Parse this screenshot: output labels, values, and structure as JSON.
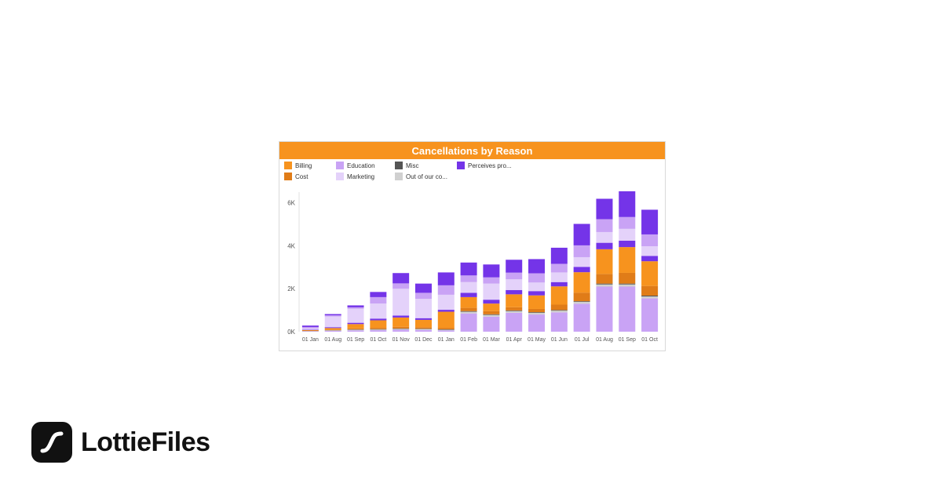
{
  "colors": {
    "header": "#F7931E",
    "Billing": "#F7931E",
    "Cost": "#E07C18",
    "Education": "#C9A3F5",
    "Marketing": "#E4D2FA",
    "Misc": "#555555",
    "Out of our co...": "#D0D0D0",
    "Perceives pro...": "#7434E8"
  },
  "brand": {
    "name": "LottieFiles",
    "logo_icon": "lottie-s-curve-icon"
  },
  "chart_data": {
    "type": "bar",
    "stacked": true,
    "title": "Cancellations by Reason",
    "legend_position": "top-left",
    "legend_order": [
      "Billing",
      "Education",
      "Misc",
      "Perceives pro...",
      "Cost",
      "Marketing",
      "Out of our co..."
    ],
    "categories": [
      "01 Jan",
      "01 Aug",
      "01 Sep",
      "01 Oct",
      "01 Nov",
      "01 Dec",
      "01 Jan",
      "01 Feb",
      "01 Mar",
      "01 Apr",
      "01 May",
      "01 Jun",
      "01 Jul",
      "01 Aug",
      "01 Sep",
      "01 Oct"
    ],
    "ylim": [
      0,
      6500
    ],
    "yticks": [
      0,
      2000,
      4000,
      6000
    ],
    "ytick_labels": [
      "0K",
      "2K",
      "4K",
      "6K"
    ],
    "grid": false,
    "series": [
      {
        "name": "Education",
        "values": [
          20,
          40,
          60,
          70,
          90,
          80,
          60,
          850,
          700,
          880,
          800,
          900,
          1300,
          2100,
          2100,
          1550
        ]
      },
      {
        "name": "Out of our co...",
        "values": [
          10,
          20,
          30,
          30,
          40,
          40,
          30,
          80,
          80,
          80,
          80,
          80,
          90,
          100,
          100,
          90
        ]
      },
      {
        "name": "Misc",
        "values": [
          5,
          10,
          15,
          20,
          20,
          20,
          20,
          30,
          30,
          30,
          30,
          30,
          30,
          40,
          40,
          40
        ]
      },
      {
        "name": "Cost",
        "values": [
          20,
          30,
          50,
          60,
          80,
          70,
          70,
          150,
          150,
          150,
          150,
          250,
          400,
          450,
          500,
          450
        ]
      },
      {
        "name": "Billing",
        "values": [
          20,
          70,
          200,
          350,
          430,
          340,
          750,
          500,
          350,
          600,
          630,
          850,
          950,
          1150,
          1200,
          1150
        ]
      },
      {
        "name": "Perceives pro...",
        "values": [
          20,
          40,
          60,
          80,
          90,
          80,
          90,
          200,
          180,
          200,
          200,
          200,
          250,
          300,
          300,
          250
        ]
      },
      {
        "name": "Marketing",
        "values": [
          60,
          500,
          650,
          700,
          1250,
          900,
          700,
          500,
          750,
          500,
          400,
          450,
          450,
          500,
          550,
          450
        ]
      },
      {
        "name": "Education",
        "values": [
          60,
          50,
          70,
          300,
          250,
          280,
          440,
          310,
          290,
          310,
          430,
          400,
          550,
          600,
          550,
          550
        ]
      },
      {
        "name": "Perceives pro...",
        "values": [
          70,
          60,
          90,
          240,
          480,
          430,
          600,
          600,
          600,
          600,
          660,
          750,
          1000,
          950,
          1200,
          1150
        ]
      }
    ]
  }
}
